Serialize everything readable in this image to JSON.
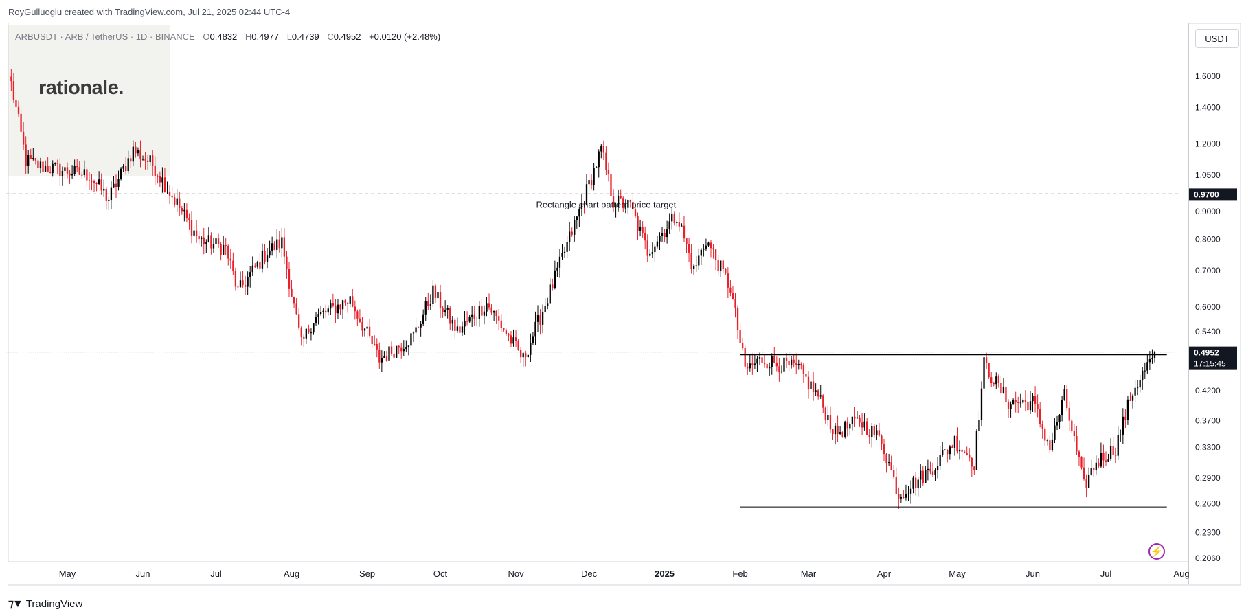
{
  "header": {
    "credit": "RoyGulluoglu created with TradingView.com, Jul 21, 2025 02:44 UTC-4"
  },
  "symbol_info": {
    "name": "ARBUSDT · ARB / TetherUS · 1D · BINANCE",
    "open_label": "O",
    "open": "0.4832",
    "high_label": "H",
    "high": "0.4977",
    "low_label": "L",
    "low": "0.4739",
    "close_label": "C",
    "close": "0.4952",
    "change": "+0.0120 (+2.48%)"
  },
  "watermark": {
    "logo_text": "rationale."
  },
  "price_scale": {
    "unit": "USDT"
  },
  "footer": {
    "brand": "TradingView"
  },
  "colors": {
    "up": "#000000",
    "down": "#e8202a",
    "line": "#000000",
    "badge_bg": "#131722",
    "badge_text": "#ffffff",
    "grid_border": "#d1d4dc"
  },
  "chart_data": {
    "type": "candlestick",
    "scale": "log",
    "y_ticks": [
      1.6,
      1.4,
      1.2,
      1.05,
      0.9,
      0.8,
      0.7,
      0.6,
      0.54,
      0.42,
      0.37,
      0.33,
      0.29,
      0.26,
      0.23,
      0.206
    ],
    "y_tick_labels": [
      "1.6000",
      "1.4000",
      "1.2000",
      "1.0500",
      "0.9000",
      "0.8000",
      "0.7000",
      "0.6000",
      "0.5400",
      "0.4200",
      "0.3700",
      "0.3300",
      "0.2900",
      "0.2600",
      "0.2300",
      "0.2060"
    ],
    "x_ticks": [
      {
        "label": "May",
        "date": "2024-05-01"
      },
      {
        "label": "Jun",
        "date": "2024-06-01"
      },
      {
        "label": "Jul",
        "date": "2024-07-01"
      },
      {
        "label": "Aug",
        "date": "2024-08-01"
      },
      {
        "label": "Sep",
        "date": "2024-09-01"
      },
      {
        "label": "Oct",
        "date": "2024-10-01"
      },
      {
        "label": "Nov",
        "date": "2024-11-01"
      },
      {
        "label": "Dec",
        "date": "2024-12-01"
      },
      {
        "label": "2025",
        "date": "2025-01-01",
        "bold": true
      },
      {
        "label": "Feb",
        "date": "2025-02-01"
      },
      {
        "label": "Mar",
        "date": "2025-03-01"
      },
      {
        "label": "Apr",
        "date": "2025-04-01"
      },
      {
        "label": "May",
        "date": "2025-05-01"
      },
      {
        "label": "Jun",
        "date": "2025-06-01"
      },
      {
        "label": "Jul",
        "date": "2025-07-01"
      },
      {
        "label": "Aug",
        "date": "2025-08-01"
      }
    ],
    "key_points": [
      {
        "date": "2024-04-08",
        "price": 1.55
      },
      {
        "date": "2024-04-14",
        "price": 1.12
      },
      {
        "date": "2024-04-20",
        "price": 1.09
      },
      {
        "date": "2024-05-10",
        "price": 1.05
      },
      {
        "date": "2024-05-18",
        "price": 0.95
      },
      {
        "date": "2024-05-28",
        "price": 1.17
      },
      {
        "date": "2024-06-05",
        "price": 1.1
      },
      {
        "date": "2024-06-15",
        "price": 0.93
      },
      {
        "date": "2024-06-24",
        "price": 0.8
      },
      {
        "date": "2024-07-05",
        "price": 0.77
      },
      {
        "date": "2024-07-10",
        "price": 0.64
      },
      {
        "date": "2024-07-22",
        "price": 0.76
      },
      {
        "date": "2024-07-28",
        "price": 0.79
      },
      {
        "date": "2024-08-05",
        "price": 0.51
      },
      {
        "date": "2024-08-10",
        "price": 0.57
      },
      {
        "date": "2024-08-25",
        "price": 0.62
      },
      {
        "date": "2024-09-06",
        "price": 0.48
      },
      {
        "date": "2024-09-20",
        "price": 0.53
      },
      {
        "date": "2024-09-28",
        "price": 0.64
      },
      {
        "date": "2024-10-08",
        "price": 0.54
      },
      {
        "date": "2024-10-20",
        "price": 0.61
      },
      {
        "date": "2024-11-04",
        "price": 0.48
      },
      {
        "date": "2024-11-12",
        "price": 0.59
      },
      {
        "date": "2024-11-25",
        "price": 0.85
      },
      {
        "date": "2024-12-06",
        "price": 1.17
      },
      {
        "date": "2024-12-11",
        "price": 0.94
      },
      {
        "date": "2024-12-18",
        "price": 0.92
      },
      {
        "date": "2024-12-25",
        "price": 0.76
      },
      {
        "date": "2025-01-06",
        "price": 0.89
      },
      {
        "date": "2025-01-13",
        "price": 0.7
      },
      {
        "date": "2025-01-18",
        "price": 0.8
      },
      {
        "date": "2025-01-28",
        "price": 0.65
      },
      {
        "date": "2025-02-03",
        "price": 0.46
      },
      {
        "date": "2025-02-10",
        "price": 0.48
      },
      {
        "date": "2025-02-25",
        "price": 0.46
      },
      {
        "date": "2025-03-05",
        "price": 0.41
      },
      {
        "date": "2025-03-12",
        "price": 0.35
      },
      {
        "date": "2025-03-22",
        "price": 0.37
      },
      {
        "date": "2025-03-31",
        "price": 0.34
      },
      {
        "date": "2025-04-07",
        "price": 0.27
      },
      {
        "date": "2025-04-20",
        "price": 0.3
      },
      {
        "date": "2025-04-30",
        "price": 0.34
      },
      {
        "date": "2025-05-08",
        "price": 0.31
      },
      {
        "date": "2025-05-12",
        "price": 0.47
      },
      {
        "date": "2025-05-22",
        "price": 0.4
      },
      {
        "date": "2025-06-01",
        "price": 0.4
      },
      {
        "date": "2025-06-08",
        "price": 0.33
      },
      {
        "date": "2025-06-14",
        "price": 0.41
      },
      {
        "date": "2025-06-22",
        "price": 0.28
      },
      {
        "date": "2025-06-27",
        "price": 0.31
      },
      {
        "date": "2025-07-05",
        "price": 0.33
      },
      {
        "date": "2025-07-12",
        "price": 0.42
      },
      {
        "date": "2025-07-20",
        "price": 0.4832
      }
    ],
    "last_candle": {
      "date": "2025-07-21",
      "open": 0.4832,
      "high": 0.4977,
      "low": 0.4739,
      "close": 0.4952
    },
    "horizontal_lines": [
      {
        "price": 0.97,
        "style": "dashed",
        "from": "2024-04-06",
        "to": "2025-07-31",
        "label": "0.9700"
      },
      {
        "price": 0.4952,
        "style": "dotted",
        "from": "2024-04-06",
        "to": "2025-07-31",
        "label": "0.4952"
      },
      {
        "price": 0.49,
        "style": "solid",
        "from": "2025-02-01",
        "to": "2025-07-26"
      },
      {
        "price": 0.256,
        "style": "solid",
        "from": "2025-02-01",
        "to": "2025-07-26"
      }
    ],
    "annotations": [
      {
        "text": "Rectangle chart pattern price target",
        "date": "2024-12-08",
        "price": 0.97
      }
    ],
    "last_price_label": "0.4952",
    "countdown": "17:15:45"
  }
}
